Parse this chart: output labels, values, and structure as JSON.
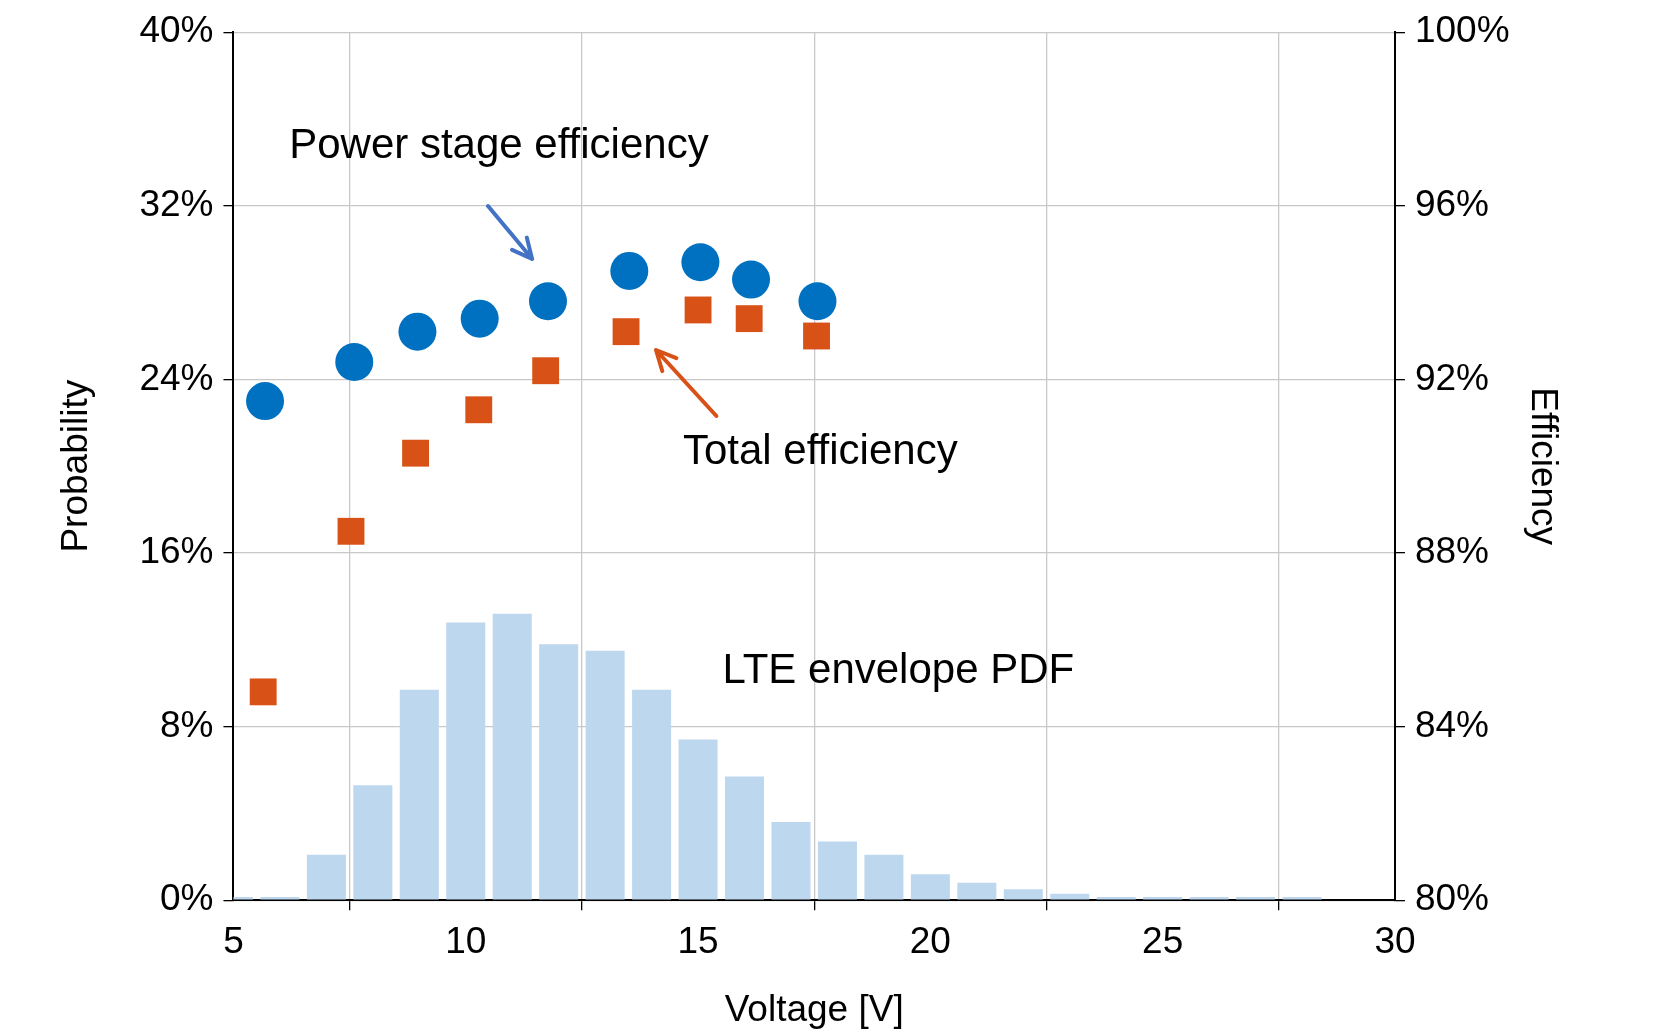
{
  "chart_data": {
    "type": "histogram",
    "xlabel": "Voltage [V]",
    "ylabel": "Probability",
    "y2label": "Efficiency",
    "bins": [
      4.5,
      5.5,
      6.5,
      7.5,
      8.5,
      9.5,
      10.5,
      11.5,
      12.5,
      13.5,
      14.5,
      15.5,
      16.5,
      17.5,
      18.5,
      19.5,
      20.5,
      21.5,
      22.5,
      23.5,
      24.5,
      25.5,
      26.5,
      27.5,
      28.5
    ],
    "values": [
      0.15,
      0.15,
      2.1,
      5.3,
      9.7,
      12.8,
      13.2,
      11.8,
      11.5,
      9.7,
      7.4,
      5.7,
      3.6,
      2.7,
      2.1,
      1.2,
      0.8,
      0.5,
      0.3,
      0.15,
      0.15,
      0.15,
      0.15,
      0.15
    ],
    "color": "#bdd7ee",
    "series": [
      {
        "type": "scatter",
        "axis": "y2",
        "marker": "circle",
        "color": "#0070c0",
        "x": [
          5.68,
          7.6,
          8.96,
          10.3,
          11.77,
          13.52,
          15.05,
          16.14,
          17.57
        ],
        "values": [
          91.5,
          92.4,
          93.1,
          93.4,
          93.8,
          94.5,
          94.7,
          94.3,
          93.8
        ]
      },
      {
        "type": "scatter",
        "axis": "y2",
        "marker": "square",
        "color": "#d85117",
        "x": [
          5.64,
          7.53,
          8.92,
          10.28,
          11.72,
          13.45,
          15.0,
          16.1,
          17.55
        ],
        "values": [
          84.8,
          88.5,
          90.3,
          91.3,
          92.2,
          93.1,
          93.6,
          93.4,
          93.0
        ]
      }
    ],
    "annotations": [
      "Power stage efficiency",
      "Total efficiency",
      "LTE envelope PDF"
    ],
    "xlim": [
      5,
      30
    ],
    "xticks": [
      5,
      10,
      15,
      20,
      25,
      30
    ],
    "ylim": [
      0,
      40
    ],
    "yticks": [
      {
        "value": 0,
        "label": "0%"
      },
      {
        "value": 8,
        "label": "8%"
      },
      {
        "value": 16,
        "label": "16%"
      },
      {
        "value": 24,
        "label": "24%"
      },
      {
        "value": 32,
        "label": "32%"
      },
      {
        "value": 40,
        "label": "40%"
      }
    ],
    "y2lim": [
      80,
      100
    ],
    "y2ticks": [
      {
        "value": 80,
        "label": "80%"
      },
      {
        "value": 84,
        "label": "84%"
      },
      {
        "value": 88,
        "label": "88%"
      },
      {
        "value": 92,
        "label": "92%"
      },
      {
        "value": 96,
        "label": "96%"
      },
      {
        "value": 100,
        "label": "100%"
      }
    ],
    "grid": true,
    "legend": false
  }
}
